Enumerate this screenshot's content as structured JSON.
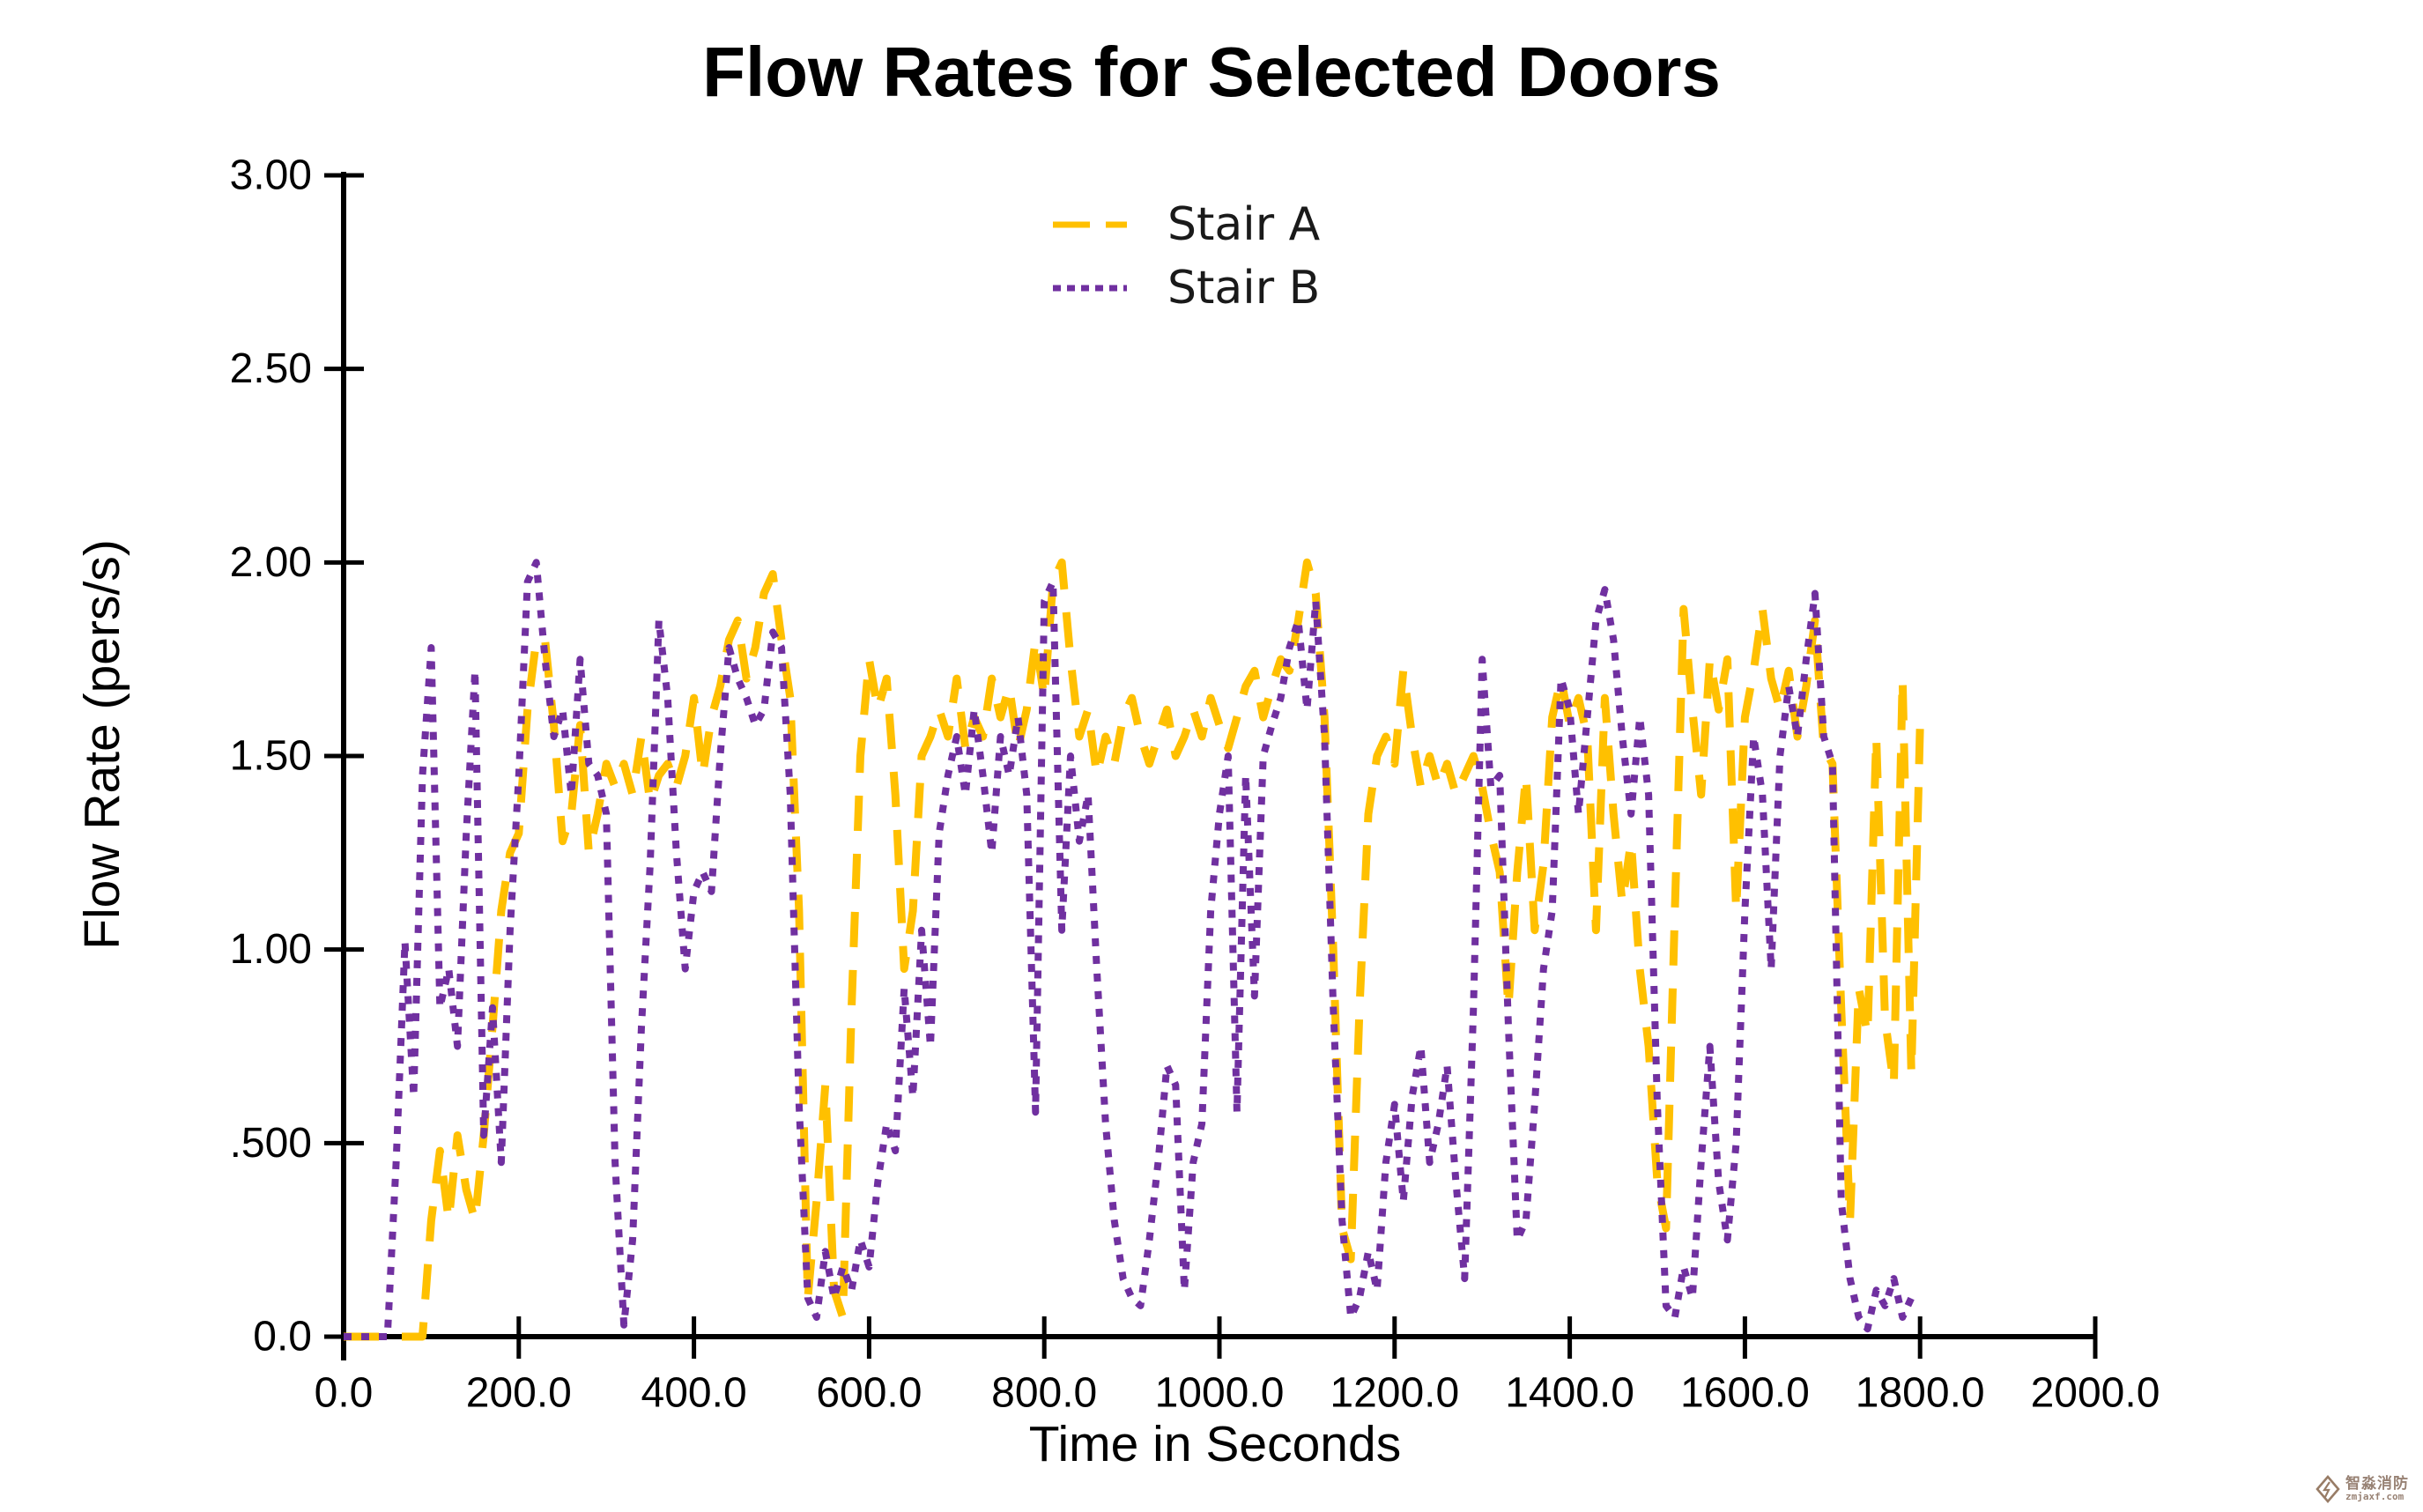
{
  "title": "Flow Rates for Selected Doors",
  "x_axis": {
    "label": "Time in Seconds",
    "tick_labels": [
      "0.0",
      "200.0",
      "400.0",
      "600.0",
      "800.0",
      "1000.0",
      "1200.0",
      "1400.0",
      "1600.0",
      "1800.0",
      "2000.0"
    ]
  },
  "y_axis": {
    "label": "Flow Rate (pers/s)",
    "tick_labels": [
      "0.0",
      ".500",
      "1.00",
      "1.50",
      "2.00",
      "2.50",
      "3.00"
    ]
  },
  "legend": [
    {
      "label": "Stair A"
    },
    {
      "label": "Stair B"
    }
  ],
  "watermark": {
    "line1": "智淼消防",
    "line2": "zmjaxf.com"
  },
  "colors": {
    "stair_a": "#FFC000",
    "stair_b": "#7030A0",
    "axis": "#000000",
    "watermark": "#8d7566"
  },
  "chart_data": {
    "type": "line",
    "title": "Flow Rates for Selected Doors",
    "xlabel": "Time in Seconds",
    "ylabel": "Flow Rate (pers/s)",
    "xlim": [
      0,
      2000
    ],
    "ylim": [
      0,
      3
    ],
    "grid": false,
    "legend_position": "top-center",
    "x_ticks": [
      0,
      200,
      400,
      600,
      800,
      1000,
      1200,
      1400,
      1600,
      1800,
      2000
    ],
    "y_ticks": [
      0,
      0.5,
      1.0,
      1.5,
      2.0,
      2.5,
      3.0
    ],
    "x_start": 0,
    "x_step": 10,
    "series": [
      {
        "name": "Stair A",
        "color": "#FFC000",
        "line_style": "dashed",
        "values": [
          0,
          0,
          0,
          0,
          0,
          0,
          0,
          0,
          0,
          0,
          0.3,
          0.48,
          0.3,
          0.52,
          0.38,
          0.3,
          0.52,
          0.8,
          1.1,
          1.25,
          1.3,
          1.62,
          1.8,
          1.8,
          1.58,
          1.28,
          1.35,
          1.58,
          1.25,
          1.35,
          1.48,
          1.42,
          1.48,
          1.4,
          1.55,
          1.38,
          1.45,
          1.48,
          1.42,
          1.5,
          1.65,
          1.45,
          1.6,
          1.68,
          1.8,
          1.85,
          1.7,
          1.78,
          1.92,
          1.97,
          1.8,
          1.65,
          1.1,
          0.1,
          0.35,
          0.65,
          0.12,
          0.05,
          0.85,
          1.5,
          1.75,
          1.62,
          1.7,
          1.4,
          0.95,
          1.1,
          1.5,
          1.55,
          1.62,
          1.55,
          1.7,
          1.52,
          1.6,
          1.55,
          1.7,
          1.6,
          1.68,
          1.52,
          1.62,
          1.8,
          1.65,
          1.95,
          2.0,
          1.75,
          1.55,
          1.62,
          1.45,
          1.55,
          1.48,
          1.6,
          1.65,
          1.55,
          1.48,
          1.55,
          1.62,
          1.5,
          1.55,
          1.62,
          1.55,
          1.65,
          1.58,
          1.52,
          1.6,
          1.68,
          1.72,
          1.6,
          1.68,
          1.75,
          1.72,
          1.85,
          2.0,
          1.92,
          1.6,
          1.0,
          0.28,
          0.2,
          0.85,
          1.35,
          1.5,
          1.55,
          1.48,
          1.72,
          1.55,
          1.42,
          1.5,
          1.42,
          1.48,
          1.4,
          1.45,
          1.5,
          1.42,
          1.3,
          1.2,
          0.85,
          1.2,
          1.45,
          1.05,
          1.22,
          1.6,
          1.7,
          1.58,
          1.65,
          1.55,
          1.05,
          1.65,
          1.35,
          1.12,
          1.28,
          0.95,
          0.75,
          0.4,
          0.28,
          1.1,
          1.88,
          1.62,
          1.4,
          1.75,
          1.62,
          1.75,
          1.1,
          1.6,
          1.72,
          1.88,
          1.7,
          1.62,
          1.72,
          1.55,
          1.68,
          1.85,
          1.52,
          1.48,
          0.85,
          0.3,
          0.9,
          0.78,
          1.55,
          0.82,
          0.65,
          1.7,
          0.68,
          1.58
        ]
      },
      {
        "name": "Stair B",
        "color": "#7030A0",
        "line_style": "dotted",
        "values": [
          0,
          0,
          0,
          0,
          0,
          0,
          0.45,
          1.02,
          0.62,
          1.45,
          1.78,
          0.85,
          0.95,
          0.75,
          1.3,
          1.72,
          0.52,
          0.85,
          0.45,
          1.05,
          1.45,
          1.95,
          2.0,
          1.75,
          1.55,
          1.62,
          1.4,
          1.75,
          1.48,
          1.45,
          1.35,
          0.45,
          0.03,
          0.25,
          0.8,
          1.22,
          1.85,
          1.65,
          1.25,
          0.95,
          1.15,
          1.2,
          1.15,
          1.5,
          1.78,
          1.7,
          1.65,
          1.58,
          1.62,
          1.82,
          1.78,
          1.4,
          0.6,
          0.1,
          0.05,
          0.22,
          0.1,
          0.18,
          0.12,
          0.25,
          0.18,
          0.4,
          0.55,
          0.48,
          0.9,
          0.62,
          1.05,
          0.75,
          1.3,
          1.45,
          1.55,
          1.4,
          1.62,
          1.45,
          1.25,
          1.55,
          1.45,
          1.6,
          1.4,
          0.58,
          1.9,
          1.95,
          1.05,
          1.5,
          1.28,
          1.4,
          0.95,
          0.55,
          0.3,
          0.15,
          0.1,
          0.08,
          0.25,
          0.45,
          0.7,
          0.65,
          0.12,
          0.45,
          0.55,
          1.1,
          1.35,
          1.5,
          0.58,
          1.45,
          0.88,
          1.5,
          1.58,
          1.65,
          1.78,
          1.85,
          1.62,
          1.9,
          1.55,
          0.85,
          0.3,
          0.05,
          0.1,
          0.22,
          0.12,
          0.45,
          0.6,
          0.35,
          0.62,
          0.75,
          0.45,
          0.55,
          0.7,
          0.4,
          0.15,
          0.85,
          1.75,
          1.42,
          1.45,
          0.8,
          0.25,
          0.3,
          0.6,
          0.95,
          1.1,
          1.7,
          1.62,
          1.35,
          1.6,
          1.85,
          1.93,
          1.8,
          1.55,
          1.35,
          1.6,
          1.4,
          0.6,
          0.08,
          0.05,
          0.18,
          0.1,
          0.45,
          0.75,
          0.4,
          0.25,
          0.5,
          1.1,
          1.55,
          1.4,
          0.95,
          1.5,
          1.68,
          1.55,
          1.75,
          1.92,
          1.55,
          1.48,
          0.35,
          0.15,
          0.05,
          0.02,
          0.12,
          0.08,
          0.15,
          0.05,
          0.1,
          null
        ]
      }
    ]
  }
}
